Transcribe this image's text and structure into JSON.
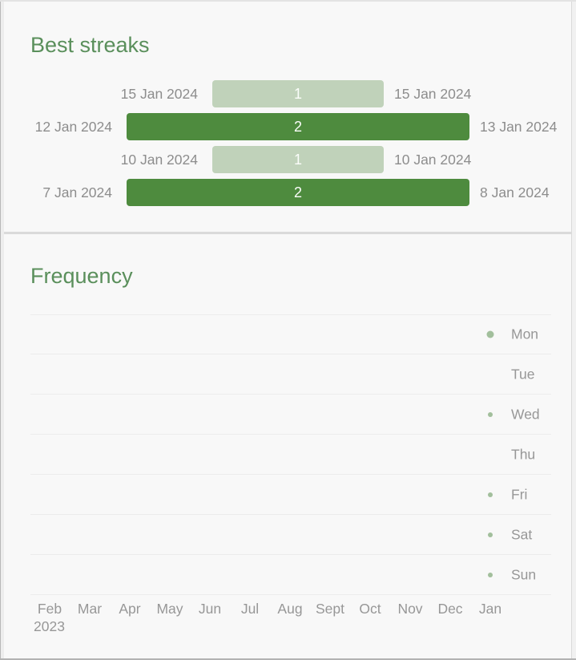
{
  "colors": {
    "title_green": "#5a8f5b",
    "bar_dark_green": "#4e8b3e",
    "bar_light_green": "#c0d2ba",
    "bar_value_text": "#fbfdfa",
    "date_label_gray": "#8d8d8d",
    "axis_label_gray": "#979797",
    "gridline_gray": "#ececec",
    "dot_green": "#a2bf9c",
    "card_background": "#f8f8f8",
    "divider_gray": "#dadada"
  },
  "streaks_card": {
    "title": "Best streaks"
  },
  "frequency_card": {
    "title": "Frequency"
  },
  "chart_data": [
    {
      "type": "bar",
      "name": "best-streaks",
      "title": "Best streaks",
      "orientation": "horizontal-centered",
      "unit": "days",
      "value_range": [
        0,
        2
      ],
      "bars": [
        {
          "start_date": "15 Jan 2024",
          "end_date": "15 Jan 2024",
          "value": 1
        },
        {
          "start_date": "12 Jan 2024",
          "end_date": "13 Jan 2024",
          "value": 2
        },
        {
          "start_date": "10 Jan 2024",
          "end_date": "10 Jan 2024",
          "value": 1
        },
        {
          "start_date": "7 Jan 2024",
          "end_date": "8 Jan 2024",
          "value": 2
        }
      ]
    },
    {
      "type": "scatter",
      "name": "frequency",
      "title": "Frequency",
      "grid": "horizontal",
      "x_tick_labels": [
        "Feb",
        "Mar",
        "Apr",
        "May",
        "Jun",
        "Jul",
        "Aug",
        "Sept",
        "Oct",
        "Nov",
        "Dec",
        "Jan"
      ],
      "x_year_label": "2023",
      "y_tick_labels": [
        "Mon",
        "Tue",
        "Wed",
        "Thu",
        "Fri",
        "Sat",
        "Sun"
      ],
      "dot_size_meaning": "checkmarks per weekday in month",
      "series": [
        {
          "name": "Mon",
          "counts_by_month": [
            0,
            0,
            0,
            0,
            0,
            0,
            0,
            0,
            0,
            0,
            0,
            2
          ]
        },
        {
          "name": "Tue",
          "counts_by_month": [
            0,
            0,
            0,
            0,
            0,
            0,
            0,
            0,
            0,
            0,
            0,
            0
          ]
        },
        {
          "name": "Wed",
          "counts_by_month": [
            0,
            0,
            0,
            0,
            0,
            0,
            0,
            0,
            0,
            0,
            0,
            1
          ]
        },
        {
          "name": "Thu",
          "counts_by_month": [
            0,
            0,
            0,
            0,
            0,
            0,
            0,
            0,
            0,
            0,
            0,
            0
          ]
        },
        {
          "name": "Fri",
          "counts_by_month": [
            0,
            0,
            0,
            0,
            0,
            0,
            0,
            0,
            0,
            0,
            0,
            1
          ]
        },
        {
          "name": "Sat",
          "counts_by_month": [
            0,
            0,
            0,
            0,
            0,
            0,
            0,
            0,
            0,
            0,
            0,
            1
          ]
        },
        {
          "name": "Sun",
          "counts_by_month": [
            0,
            0,
            0,
            0,
            0,
            0,
            0,
            0,
            0,
            0,
            0,
            1
          ]
        }
      ]
    }
  ]
}
